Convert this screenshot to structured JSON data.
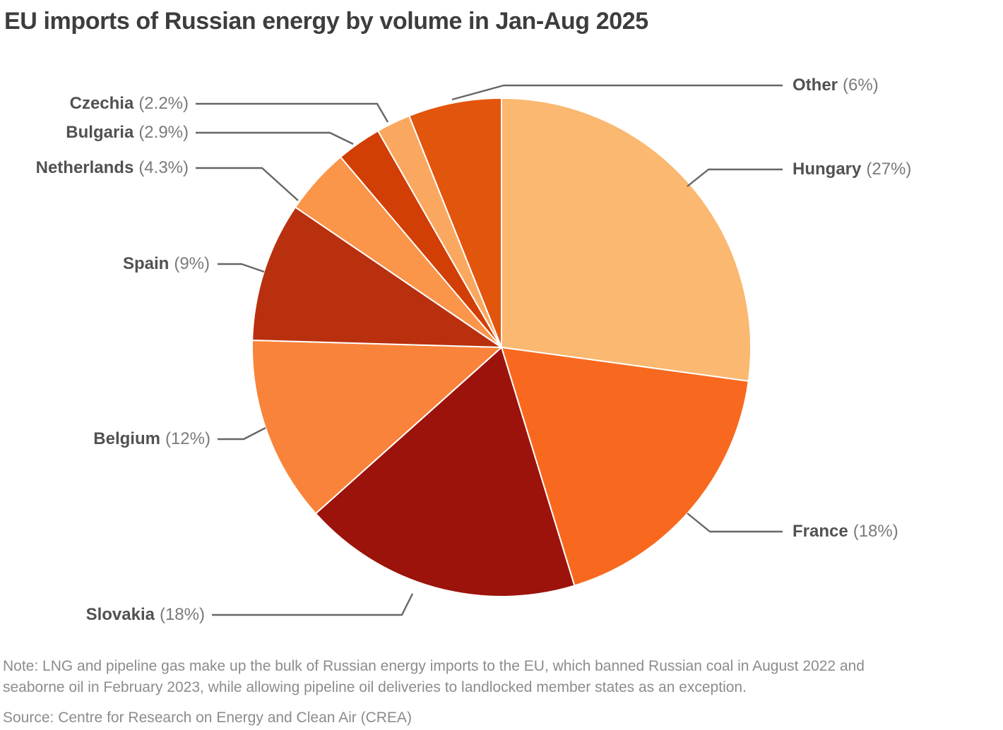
{
  "header": {
    "title": "EU imports of Russian energy by volume in Jan-Aug 2025"
  },
  "chart_data": {
    "type": "pie",
    "title": "EU imports of Russian energy by volume in Jan-Aug 2025",
    "start_angle": "top",
    "direction": "clockwise",
    "legend_position": "callout-labels-with-leader-lines",
    "slices": [
      {
        "label": "Hungary",
        "value": 27,
        "display": "(27%)",
        "color": "#FAB870"
      },
      {
        "label": "France",
        "value": 18,
        "display": "(18%)",
        "color": "#F8691F"
      },
      {
        "label": "Slovakia",
        "value": 18,
        "display": "(18%)",
        "color": "#9C130B"
      },
      {
        "label": "Belgium",
        "value": 12,
        "display": "(12%)",
        "color": "#F9833A"
      },
      {
        "label": "Spain",
        "value": 9,
        "display": "(9%)",
        "color": "#B9300F"
      },
      {
        "label": "Netherlands",
        "value": 4.3,
        "display": "(4.3%)",
        "color": "#FB9549"
      },
      {
        "label": "Bulgaria",
        "value": 2.9,
        "display": "(2.9%)",
        "color": "#D13E06"
      },
      {
        "label": "Czechia",
        "value": 2.2,
        "display": "(2.2%)",
        "color": "#FAA85F"
      },
      {
        "label": "Other",
        "value": 6,
        "display": "(6%)",
        "color": "#E2550C"
      }
    ]
  },
  "colors": {
    "title_text": "#3d3d3d",
    "label_name_text": "#515151",
    "label_pct_text": "#7a7a7a",
    "leader_line": "#666666",
    "note_text": "#8c8c8c",
    "background": "#ffffff"
  },
  "footer": {
    "note_lines": [
      "Note: LNG and pipeline gas make up the bulk of Russian energy imports to the EU, which banned Russian coal in August 2022 and",
      "seaborne oil in February 2023, while allowing pipeline oil deliveries to landlocked member states as an exception."
    ],
    "source": "Source: Centre for Research on Energy and Clean Air (CREA)"
  }
}
